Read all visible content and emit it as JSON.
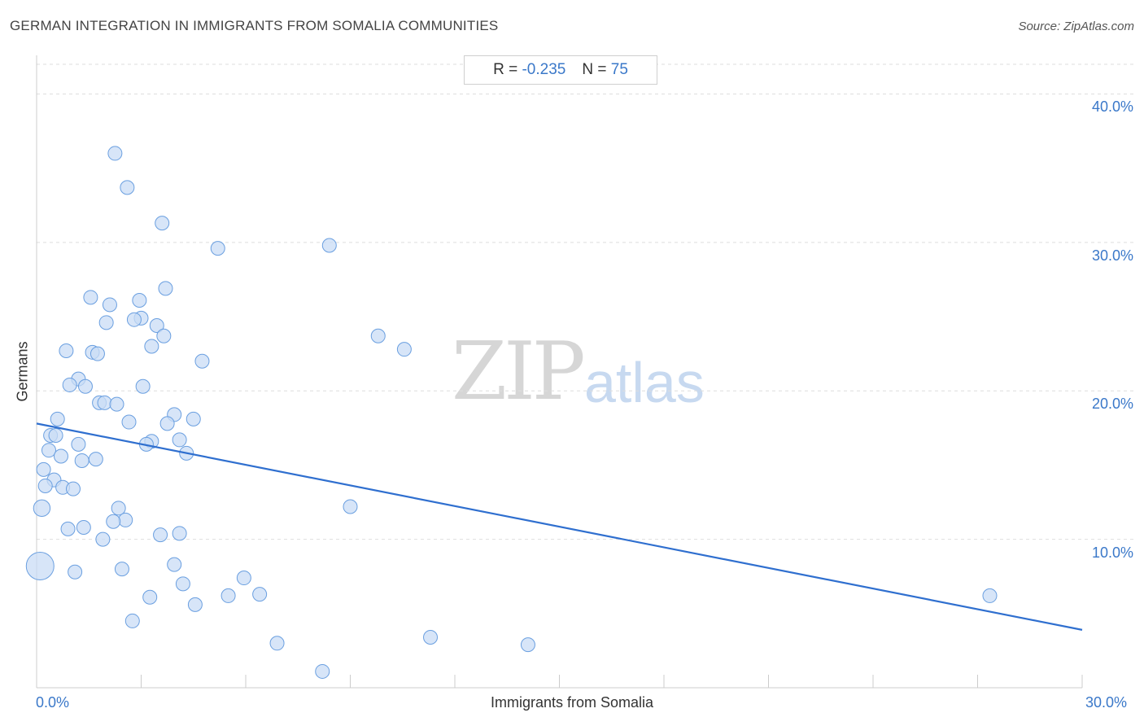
{
  "title": "GERMAN INTEGRATION IN IMMIGRANTS FROM SOMALIA COMMUNITIES",
  "source": "Source: ZipAtlas.com",
  "stats": {
    "r_label": "R =",
    "r_value": "-0.235",
    "n_label": "N =",
    "n_value": "75"
  },
  "watermark": {
    "zip": "ZIP",
    "atlas": "atlas"
  },
  "chart_data": {
    "type": "scatter",
    "title": "GERMAN INTEGRATION IN IMMIGRANTS FROM SOMALIA COMMUNITIES",
    "xlabel": "Immigrants from Somalia",
    "ylabel": "Germans",
    "xlim": [
      0,
      30
    ],
    "ylim": [
      0,
      42
    ],
    "x_tick_labels": [
      "0.0%",
      "30.0%"
    ],
    "y_ticks": [
      10,
      20,
      30,
      40
    ],
    "y_tick_labels": [
      "10.0%",
      "20.0%",
      "30.0%",
      "40.0%"
    ],
    "grid": true,
    "colors": {
      "point_fill": "#c9dcf5",
      "point_stroke": "#6a9fe0",
      "trend": "#2f6fcf"
    },
    "trendline": {
      "x": [
        0,
        30
      ],
      "y": [
        17.8,
        3.9
      ]
    },
    "points": [
      {
        "x": 2.25,
        "y": 36.0,
        "s": 1
      },
      {
        "x": 2.6,
        "y": 33.7,
        "s": 1
      },
      {
        "x": 3.6,
        "y": 31.3,
        "s": 1
      },
      {
        "x": 5.2,
        "y": 29.6,
        "s": 1
      },
      {
        "x": 8.4,
        "y": 29.8,
        "s": 1
      },
      {
        "x": 3.7,
        "y": 26.9,
        "s": 1
      },
      {
        "x": 1.55,
        "y": 26.3,
        "s": 1
      },
      {
        "x": 2.1,
        "y": 25.8,
        "s": 1
      },
      {
        "x": 2.95,
        "y": 26.1,
        "s": 1
      },
      {
        "x": 3.0,
        "y": 24.9,
        "s": 1
      },
      {
        "x": 2.8,
        "y": 24.8,
        "s": 1
      },
      {
        "x": 2.0,
        "y": 24.6,
        "s": 1
      },
      {
        "x": 3.45,
        "y": 24.4,
        "s": 1
      },
      {
        "x": 3.65,
        "y": 23.7,
        "s": 1
      },
      {
        "x": 3.3,
        "y": 23.0,
        "s": 1
      },
      {
        "x": 9.8,
        "y": 23.7,
        "s": 1
      },
      {
        "x": 10.55,
        "y": 22.8,
        "s": 1
      },
      {
        "x": 0.85,
        "y": 22.7,
        "s": 1
      },
      {
        "x": 1.6,
        "y": 22.6,
        "s": 1
      },
      {
        "x": 1.75,
        "y": 22.5,
        "s": 1
      },
      {
        "x": 4.75,
        "y": 22.0,
        "s": 1
      },
      {
        "x": 1.2,
        "y": 20.8,
        "s": 1
      },
      {
        "x": 0.95,
        "y": 20.4,
        "s": 1
      },
      {
        "x": 1.4,
        "y": 20.3,
        "s": 1
      },
      {
        "x": 3.05,
        "y": 20.3,
        "s": 1
      },
      {
        "x": 1.8,
        "y": 19.2,
        "s": 1
      },
      {
        "x": 1.95,
        "y": 19.2,
        "s": 1
      },
      {
        "x": 2.3,
        "y": 19.1,
        "s": 1
      },
      {
        "x": 3.95,
        "y": 18.4,
        "s": 1
      },
      {
        "x": 0.6,
        "y": 18.1,
        "s": 1
      },
      {
        "x": 4.5,
        "y": 18.1,
        "s": 1
      },
      {
        "x": 2.65,
        "y": 17.9,
        "s": 1
      },
      {
        "x": 3.75,
        "y": 17.8,
        "s": 1
      },
      {
        "x": 0.4,
        "y": 17.0,
        "s": 1
      },
      {
        "x": 0.55,
        "y": 17.0,
        "s": 1
      },
      {
        "x": 4.1,
        "y": 16.7,
        "s": 1
      },
      {
        "x": 3.3,
        "y": 16.6,
        "s": 1
      },
      {
        "x": 1.2,
        "y": 16.4,
        "s": 1
      },
      {
        "x": 3.15,
        "y": 16.4,
        "s": 1
      },
      {
        "x": 0.35,
        "y": 16.0,
        "s": 1
      },
      {
        "x": 4.3,
        "y": 15.8,
        "s": 1
      },
      {
        "x": 0.7,
        "y": 15.6,
        "s": 1
      },
      {
        "x": 1.7,
        "y": 15.4,
        "s": 1
      },
      {
        "x": 1.3,
        "y": 15.3,
        "s": 1
      },
      {
        "x": 0.2,
        "y": 14.7,
        "s": 1
      },
      {
        "x": 0.5,
        "y": 14.0,
        "s": 1
      },
      {
        "x": 0.25,
        "y": 13.6,
        "s": 1
      },
      {
        "x": 0.75,
        "y": 13.5,
        "s": 1
      },
      {
        "x": 1.05,
        "y": 13.4,
        "s": 1
      },
      {
        "x": 9.0,
        "y": 12.2,
        "s": 1
      },
      {
        "x": 0.15,
        "y": 12.1,
        "s": 1.2
      },
      {
        "x": 2.35,
        "y": 12.1,
        "s": 1
      },
      {
        "x": 2.55,
        "y": 11.3,
        "s": 1
      },
      {
        "x": 2.2,
        "y": 11.2,
        "s": 1
      },
      {
        "x": 1.35,
        "y": 10.8,
        "s": 1
      },
      {
        "x": 0.9,
        "y": 10.7,
        "s": 1
      },
      {
        "x": 3.55,
        "y": 10.3,
        "s": 1
      },
      {
        "x": 4.1,
        "y": 10.4,
        "s": 1
      },
      {
        "x": 1.9,
        "y": 10.0,
        "s": 1
      },
      {
        "x": 0.1,
        "y": 8.2,
        "s": 2.0
      },
      {
        "x": 3.95,
        "y": 8.3,
        "s": 1
      },
      {
        "x": 2.45,
        "y": 8.0,
        "s": 1
      },
      {
        "x": 1.1,
        "y": 7.8,
        "s": 1
      },
      {
        "x": 5.95,
        "y": 7.4,
        "s": 1
      },
      {
        "x": 4.2,
        "y": 7.0,
        "s": 1
      },
      {
        "x": 6.4,
        "y": 6.3,
        "s": 1
      },
      {
        "x": 5.5,
        "y": 6.2,
        "s": 1
      },
      {
        "x": 27.35,
        "y": 6.2,
        "s": 1
      },
      {
        "x": 3.25,
        "y": 6.1,
        "s": 1
      },
      {
        "x": 4.55,
        "y": 5.6,
        "s": 1
      },
      {
        "x": 2.75,
        "y": 4.5,
        "s": 1
      },
      {
        "x": 11.3,
        "y": 3.4,
        "s": 1
      },
      {
        "x": 6.9,
        "y": 3.0,
        "s": 1
      },
      {
        "x": 14.1,
        "y": 2.9,
        "s": 1
      },
      {
        "x": 8.2,
        "y": 1.1,
        "s": 1
      }
    ]
  }
}
